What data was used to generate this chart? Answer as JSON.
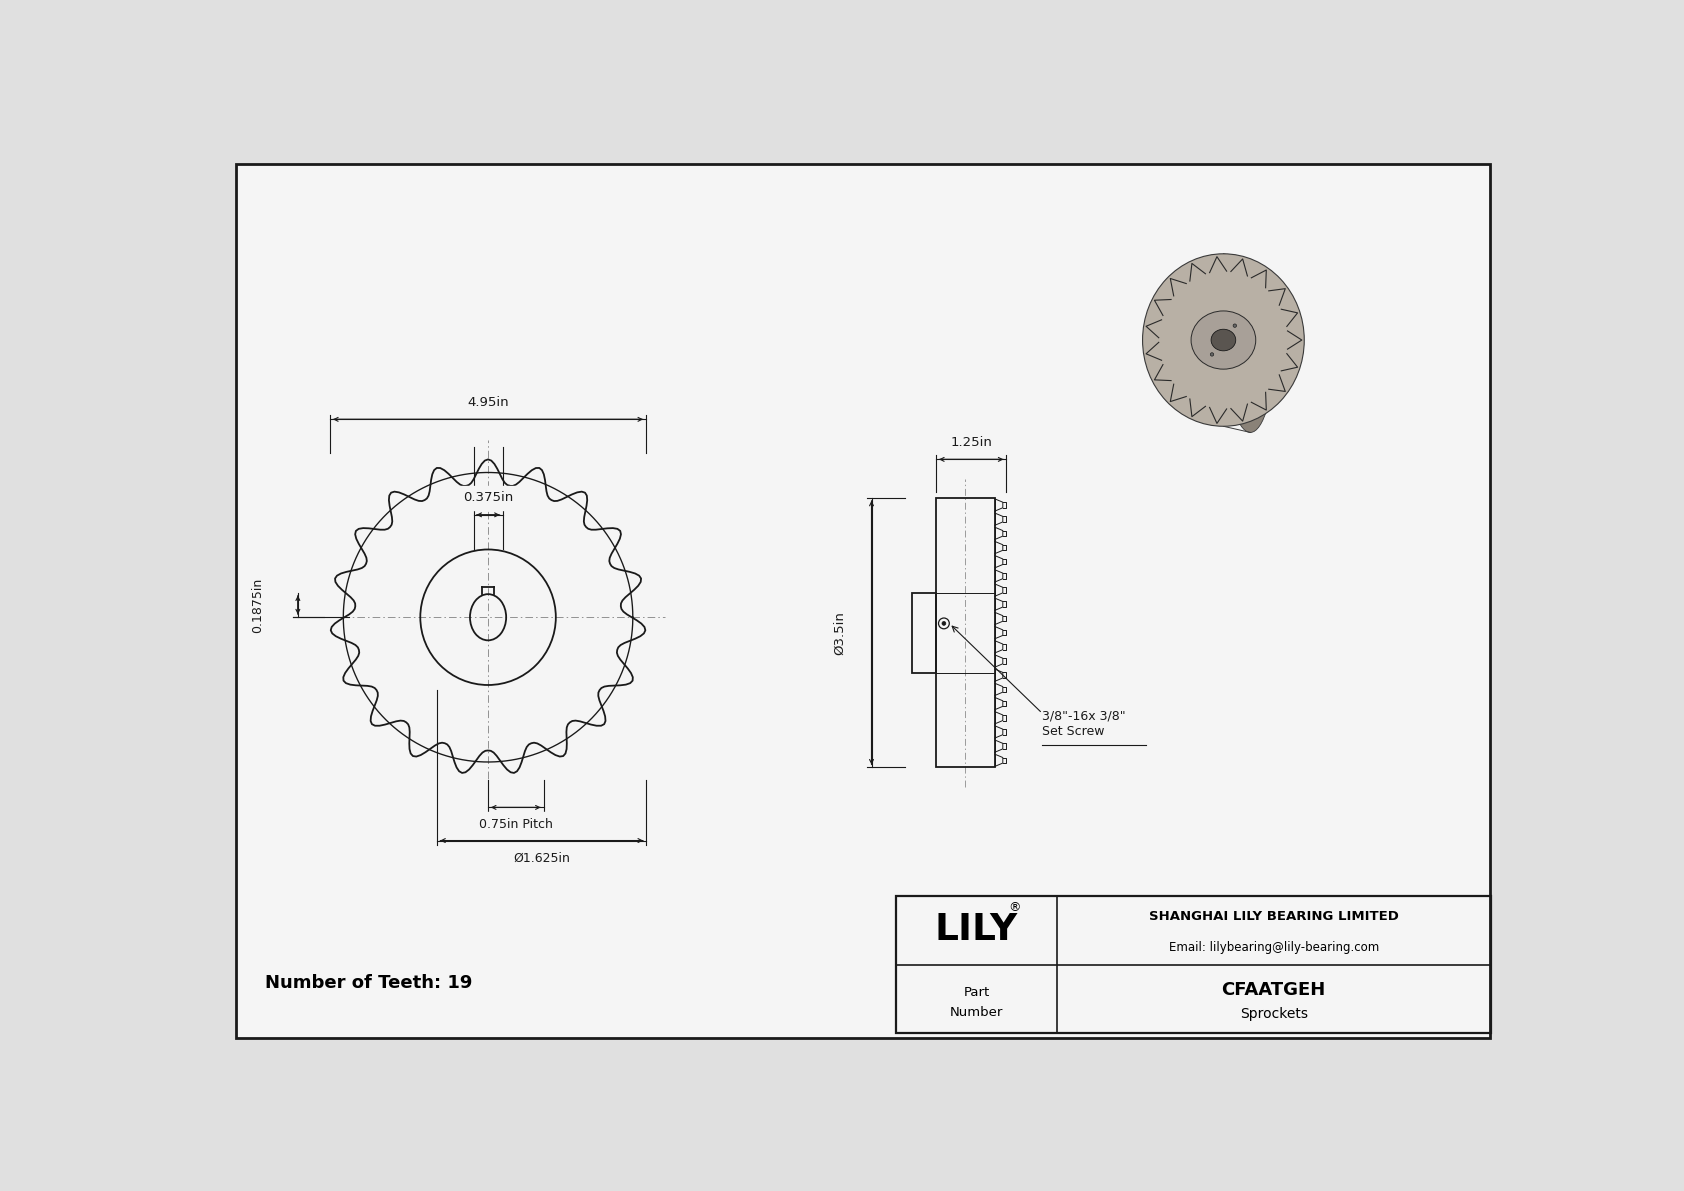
{
  "bg_color": "#e0e0e0",
  "paper_color": "#f5f5f5",
  "line_color": "#1a1a1a",
  "title": "CFAATGEH",
  "subtitle": "Sprockets",
  "company_name": "SHANGHAI LILY BEARING LIMITED",
  "company_email": "Email: lilybearing@lily-bearing.com",
  "part_label": "Part\nNumber",
  "num_teeth": 19,
  "dim_495": "4.95in",
  "dim_0375": "0.375in",
  "dim_01875": "0.1875in",
  "dim_075pitch": "0.75in Pitch",
  "dim_1625": "Ø1.625in",
  "dim_125": "1.25in",
  "dim_35": "Ø3.5in",
  "dim_setscrew": "3/8\"-16x 3/8\"\nSet Screw"
}
